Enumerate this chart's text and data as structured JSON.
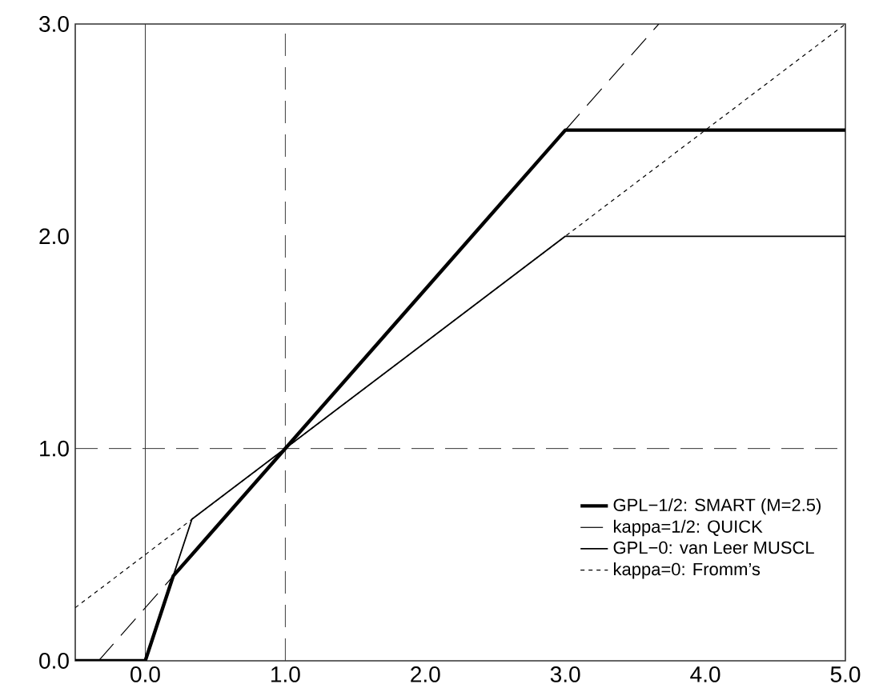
{
  "chart_data": {
    "type": "line",
    "xlim": [
      -0.5,
      5.0
    ],
    "ylim": [
      0,
      3.0
    ],
    "xticks": [
      {
        "value": 0,
        "label": "0.0"
      },
      {
        "value": 1,
        "label": "1.0"
      },
      {
        "value": 2,
        "label": "2.0"
      },
      {
        "value": 3,
        "label": "3.0"
      },
      {
        "value": 4,
        "label": "4.0"
      },
      {
        "value": 5,
        "label": "5.0"
      }
    ],
    "yticks": [
      {
        "value": 0,
        "label": "0.0"
      },
      {
        "value": 1,
        "label": "1.0"
      },
      {
        "value": 2,
        "label": "2.0"
      },
      {
        "value": 3,
        "label": "3.0"
      }
    ],
    "legend": "bottom right",
    "grid": false,
    "series": [
      {
        "name": "GPL−1/2: SMART (M=2.5)",
        "color": "#000000",
        "line_style": "solid",
        "x": [
          -0.5,
          0,
          0.2,
          3,
          5
        ],
        "values": [
          0,
          0,
          0.4,
          2.5,
          2.5
        ]
      },
      {
        "name": "kappa=1/2: QUICK",
        "color": "#000000",
        "line_style": "dashed",
        "x": [
          -0.333,
          3.667
        ],
        "values": [
          0,
          3
        ]
      },
      {
        "name": "GPL−0: van Leer MUSCL",
        "color": "#000000",
        "line_style": "solid",
        "x": [
          -0.5,
          0,
          0.333,
          3,
          5
        ],
        "values": [
          0,
          0,
          0.667,
          2,
          2
        ]
      },
      {
        "name": "kappa=0: Fromm’s",
        "color": "#000000",
        "line_style": "dotted",
        "x": [
          -0.5,
          5
        ],
        "values": [
          0.25,
          3
        ]
      }
    ],
    "ref_lines": [
      {
        "axis": "x",
        "value": 1,
        "line_style": "dashed"
      },
      {
        "axis": "y",
        "value": 1,
        "line_style": "dashed"
      },
      {
        "axis": "x",
        "value": 0,
        "line_style": "solid"
      }
    ]
  }
}
